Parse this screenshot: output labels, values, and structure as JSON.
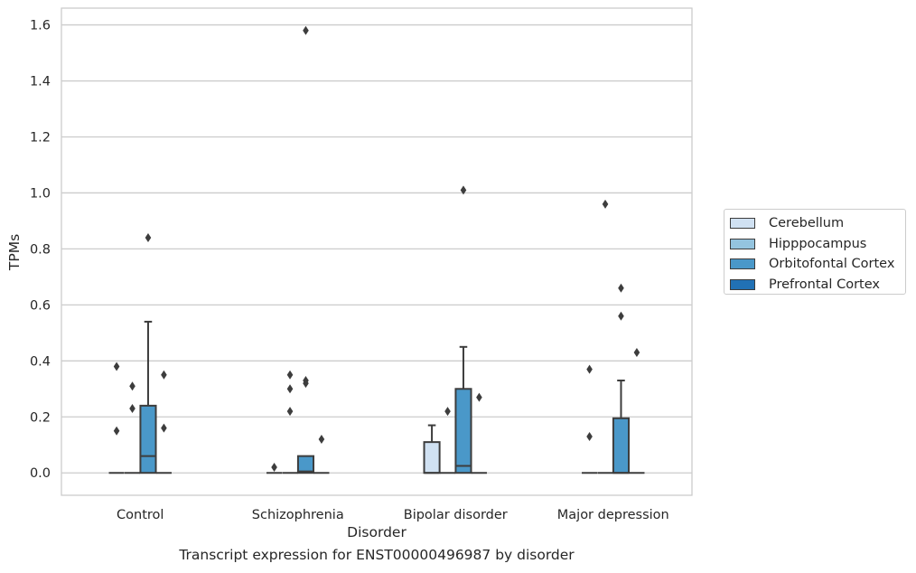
{
  "chart_data": {
    "type": "box",
    "title": "",
    "caption": "Transcript expression for ENST00000496987 by disorder",
    "xlabel": "Disorder",
    "ylabel": "TPMs",
    "categories": [
      "Control",
      "Schizophrenia",
      "Bipolar disorder",
      "Major depression"
    ],
    "ylim": [
      -0.08,
      1.66
    ],
    "yticks": [
      "0.0",
      "0.2",
      "0.4",
      "0.6",
      "0.8",
      "1.0",
      "1.2",
      "1.4",
      "1.6"
    ],
    "ytick_values": [
      0.0,
      0.2,
      0.4,
      0.6,
      0.8,
      1.0,
      1.2,
      1.4,
      1.6
    ],
    "grid": true,
    "legend_position": "right",
    "series": [
      {
        "name": "Cerebellum",
        "color": "#d0e1f2",
        "boxes": [
          {
            "min": 0,
            "q1": 0,
            "median": 0,
            "q3": 0,
            "max": 0,
            "outliers": [
              0.38,
              0.15
            ]
          },
          {
            "min": 0,
            "q1": 0,
            "median": 0,
            "q3": 0,
            "max": 0,
            "outliers": [
              0.02
            ]
          },
          {
            "min": 0,
            "q1": 0,
            "median": 0,
            "q3": 0.11,
            "max": 0.17,
            "outliers": []
          },
          {
            "min": 0,
            "q1": 0,
            "median": 0,
            "q3": 0,
            "max": 0,
            "outliers": [
              0.37,
              0.13
            ]
          }
        ]
      },
      {
        "name": "Hipppocampus",
        "color": "#94c4df",
        "boxes": [
          {
            "min": 0,
            "q1": 0,
            "median": 0,
            "q3": 0,
            "max": 0,
            "outliers": [
              0.31,
              0.23
            ]
          },
          {
            "min": 0,
            "q1": 0,
            "median": 0,
            "q3": 0,
            "max": 0,
            "outliers": [
              0.35,
              0.3,
              0.22
            ]
          },
          {
            "min": 0,
            "q1": 0,
            "median": 0,
            "q3": 0,
            "max": 0,
            "outliers": [
              0.22
            ]
          },
          {
            "min": 0,
            "q1": 0,
            "median": 0,
            "q3": 0,
            "max": 0,
            "outliers": [
              0.96
            ]
          }
        ]
      },
      {
        "name": "Orbitofontal Cortex",
        "color": "#4a98c9",
        "boxes": [
          {
            "min": 0,
            "q1": 0,
            "median": 0.06,
            "q3": 0.24,
            "max": 0.54,
            "outliers": [
              0.84
            ]
          },
          {
            "min": 0,
            "q1": 0,
            "median": 0.005,
            "q3": 0.06,
            "max": 0.06,
            "outliers": [
              1.58,
              0.33,
              0.32
            ]
          },
          {
            "min": 0,
            "q1": 0,
            "median": 0.025,
            "q3": 0.3,
            "max": 0.45,
            "outliers": [
              1.01
            ]
          },
          {
            "min": 0,
            "q1": 0,
            "median": 0,
            "q3": 0.195,
            "max": 0.33,
            "outliers": [
              0.66,
              0.56
            ]
          }
        ]
      },
      {
        "name": "Prefrontal Cortex",
        "color": "#2171b5",
        "boxes": [
          {
            "min": 0,
            "q1": 0,
            "median": 0,
            "q3": 0,
            "max": 0,
            "outliers": [
              0.35,
              0.16
            ]
          },
          {
            "min": 0,
            "q1": 0,
            "median": 0,
            "q3": 0,
            "max": 0,
            "outliers": [
              0.12
            ]
          },
          {
            "min": 0,
            "q1": 0,
            "median": 0,
            "q3": 0,
            "max": 0,
            "outliers": [
              0.27
            ]
          },
          {
            "min": 0,
            "q1": 0,
            "median": 0,
            "q3": 0,
            "max": 0,
            "outliers": [
              0.43
            ]
          }
        ]
      }
    ]
  }
}
